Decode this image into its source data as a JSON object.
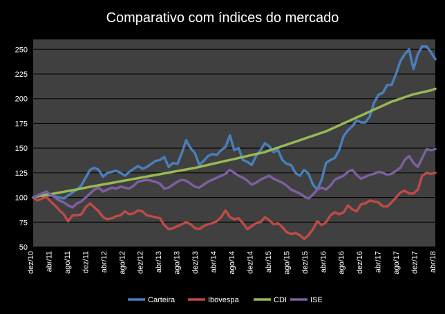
{
  "chart_data": {
    "type": "line",
    "title": "Comparativo com índices do mercado",
    "xlabel": "",
    "ylabel": "",
    "ylim": [
      50,
      260
    ],
    "yticks": [
      50,
      75,
      100,
      125,
      150,
      175,
      200,
      225,
      250
    ],
    "grid": true,
    "legend_position": "bottom",
    "x_tick_labels": [
      "dez/10",
      "abr/11",
      "ago/11",
      "dez/11",
      "abr/12",
      "ago/12",
      "dez/12",
      "abr/13",
      "ago/13",
      "dez/13",
      "abr/14",
      "ago/14",
      "dez/14",
      "abr/15",
      "ago/15",
      "dez/15",
      "abr/16",
      "ago/16",
      "dez/16",
      "abr/17",
      "ago/17",
      "dez/17",
      "abr/18"
    ],
    "series": [
      {
        "name": "Carteira",
        "color": "#4a7ebb",
        "values": [
          100,
          102,
          104,
          103,
          102,
          101,
          100,
          99,
          102,
          105,
          108,
          112,
          120,
          128,
          130,
          128,
          121,
          125,
          126,
          127,
          125,
          122,
          126,
          129,
          132,
          129,
          131,
          134,
          137,
          138,
          141,
          131,
          135,
          134,
          145,
          158,
          150,
          145,
          133,
          137,
          142,
          144,
          143,
          148,
          151,
          163,
          148,
          150,
          138,
          136,
          133,
          142,
          148,
          155,
          152,
          146,
          148,
          138,
          134,
          133,
          125,
          122,
          128,
          124,
          113,
          108,
          118,
          135,
          138,
          140,
          148,
          162,
          168,
          172,
          178,
          176,
          176,
          182,
          196,
          204,
          206,
          214,
          214,
          225,
          238,
          245,
          250,
          230,
          245,
          253,
          253,
          247,
          240
        ]
      },
      {
        "name": "Ibovespa",
        "color": "#be4b48",
        "values": [
          100,
          97,
          99,
          101,
          96,
          92,
          87,
          83,
          76,
          82,
          82,
          83,
          90,
          94,
          90,
          86,
          80,
          78,
          79,
          81,
          82,
          86,
          83,
          84,
          87,
          86,
          82,
          81,
          80,
          79,
          72,
          68,
          69,
          71,
          73,
          75,
          73,
          69,
          68,
          71,
          73,
          74,
          76,
          80,
          87,
          80,
          78,
          79,
          74,
          68,
          71,
          74,
          75,
          80,
          77,
          73,
          74,
          70,
          65,
          63,
          64,
          62,
          58,
          62,
          68,
          76,
          72,
          75,
          82,
          85,
          83,
          85,
          92,
          88,
          86,
          93,
          94,
          97,
          96,
          95,
          91,
          91,
          95,
          100,
          105,
          107,
          104,
          104,
          108,
          122,
          125,
          124,
          125
        ]
      },
      {
        "name": "CDI",
        "color": "#98b954",
        "values": [
          100,
          101,
          101.8,
          102.6,
          103.4,
          104.2,
          105,
          105.8,
          106.6,
          107.4,
          108.2,
          109,
          110,
          110.8,
          111.6,
          112.4,
          113.2,
          114,
          114.8,
          115.6,
          116.4,
          117.2,
          118,
          118.8,
          119.6,
          120.4,
          121.2,
          122,
          122.8,
          123.6,
          124.4,
          125.2,
          126,
          126.8,
          127.6,
          128.4,
          129.2,
          130,
          131,
          132,
          133,
          134,
          135,
          136,
          137,
          138,
          139,
          140,
          141,
          142,
          143,
          144,
          145,
          146,
          147.5,
          149,
          150.5,
          152,
          153.5,
          155,
          156.5,
          158,
          159.5,
          161,
          162.5,
          164,
          165.5,
          167,
          169,
          171,
          173,
          175,
          177,
          179,
          181,
          183,
          185,
          187,
          189,
          191,
          193,
          195,
          197,
          198.5,
          200,
          201.5,
          203,
          204.5,
          205.5,
          206.5,
          207.5,
          208.5,
          210
        ]
      },
      {
        "name": "ISE",
        "color": "#7d60a0",
        "values": [
          100,
          102,
          104,
          106,
          103,
          100,
          97,
          95,
          92,
          90,
          94,
          96,
          100,
          104,
          108,
          110,
          106,
          108,
          110,
          109,
          111,
          110,
          109,
          112,
          116,
          117,
          118,
          117,
          116,
          114,
          109,
          110,
          113,
          116,
          118,
          117,
          114,
          111,
          110,
          113,
          116,
          118,
          120,
          122,
          124,
          128,
          125,
          122,
          120,
          117,
          113,
          115,
          118,
          120,
          122,
          119,
          117,
          115,
          112,
          108,
          106,
          104,
          101,
          99,
          103,
          108,
          110,
          108,
          112,
          118,
          120,
          122,
          126,
          128,
          123,
          119,
          121,
          123,
          124,
          126,
          125,
          123,
          124,
          127,
          130,
          138,
          142,
          135,
          131,
          140,
          149,
          148,
          149
        ]
      }
    ]
  }
}
